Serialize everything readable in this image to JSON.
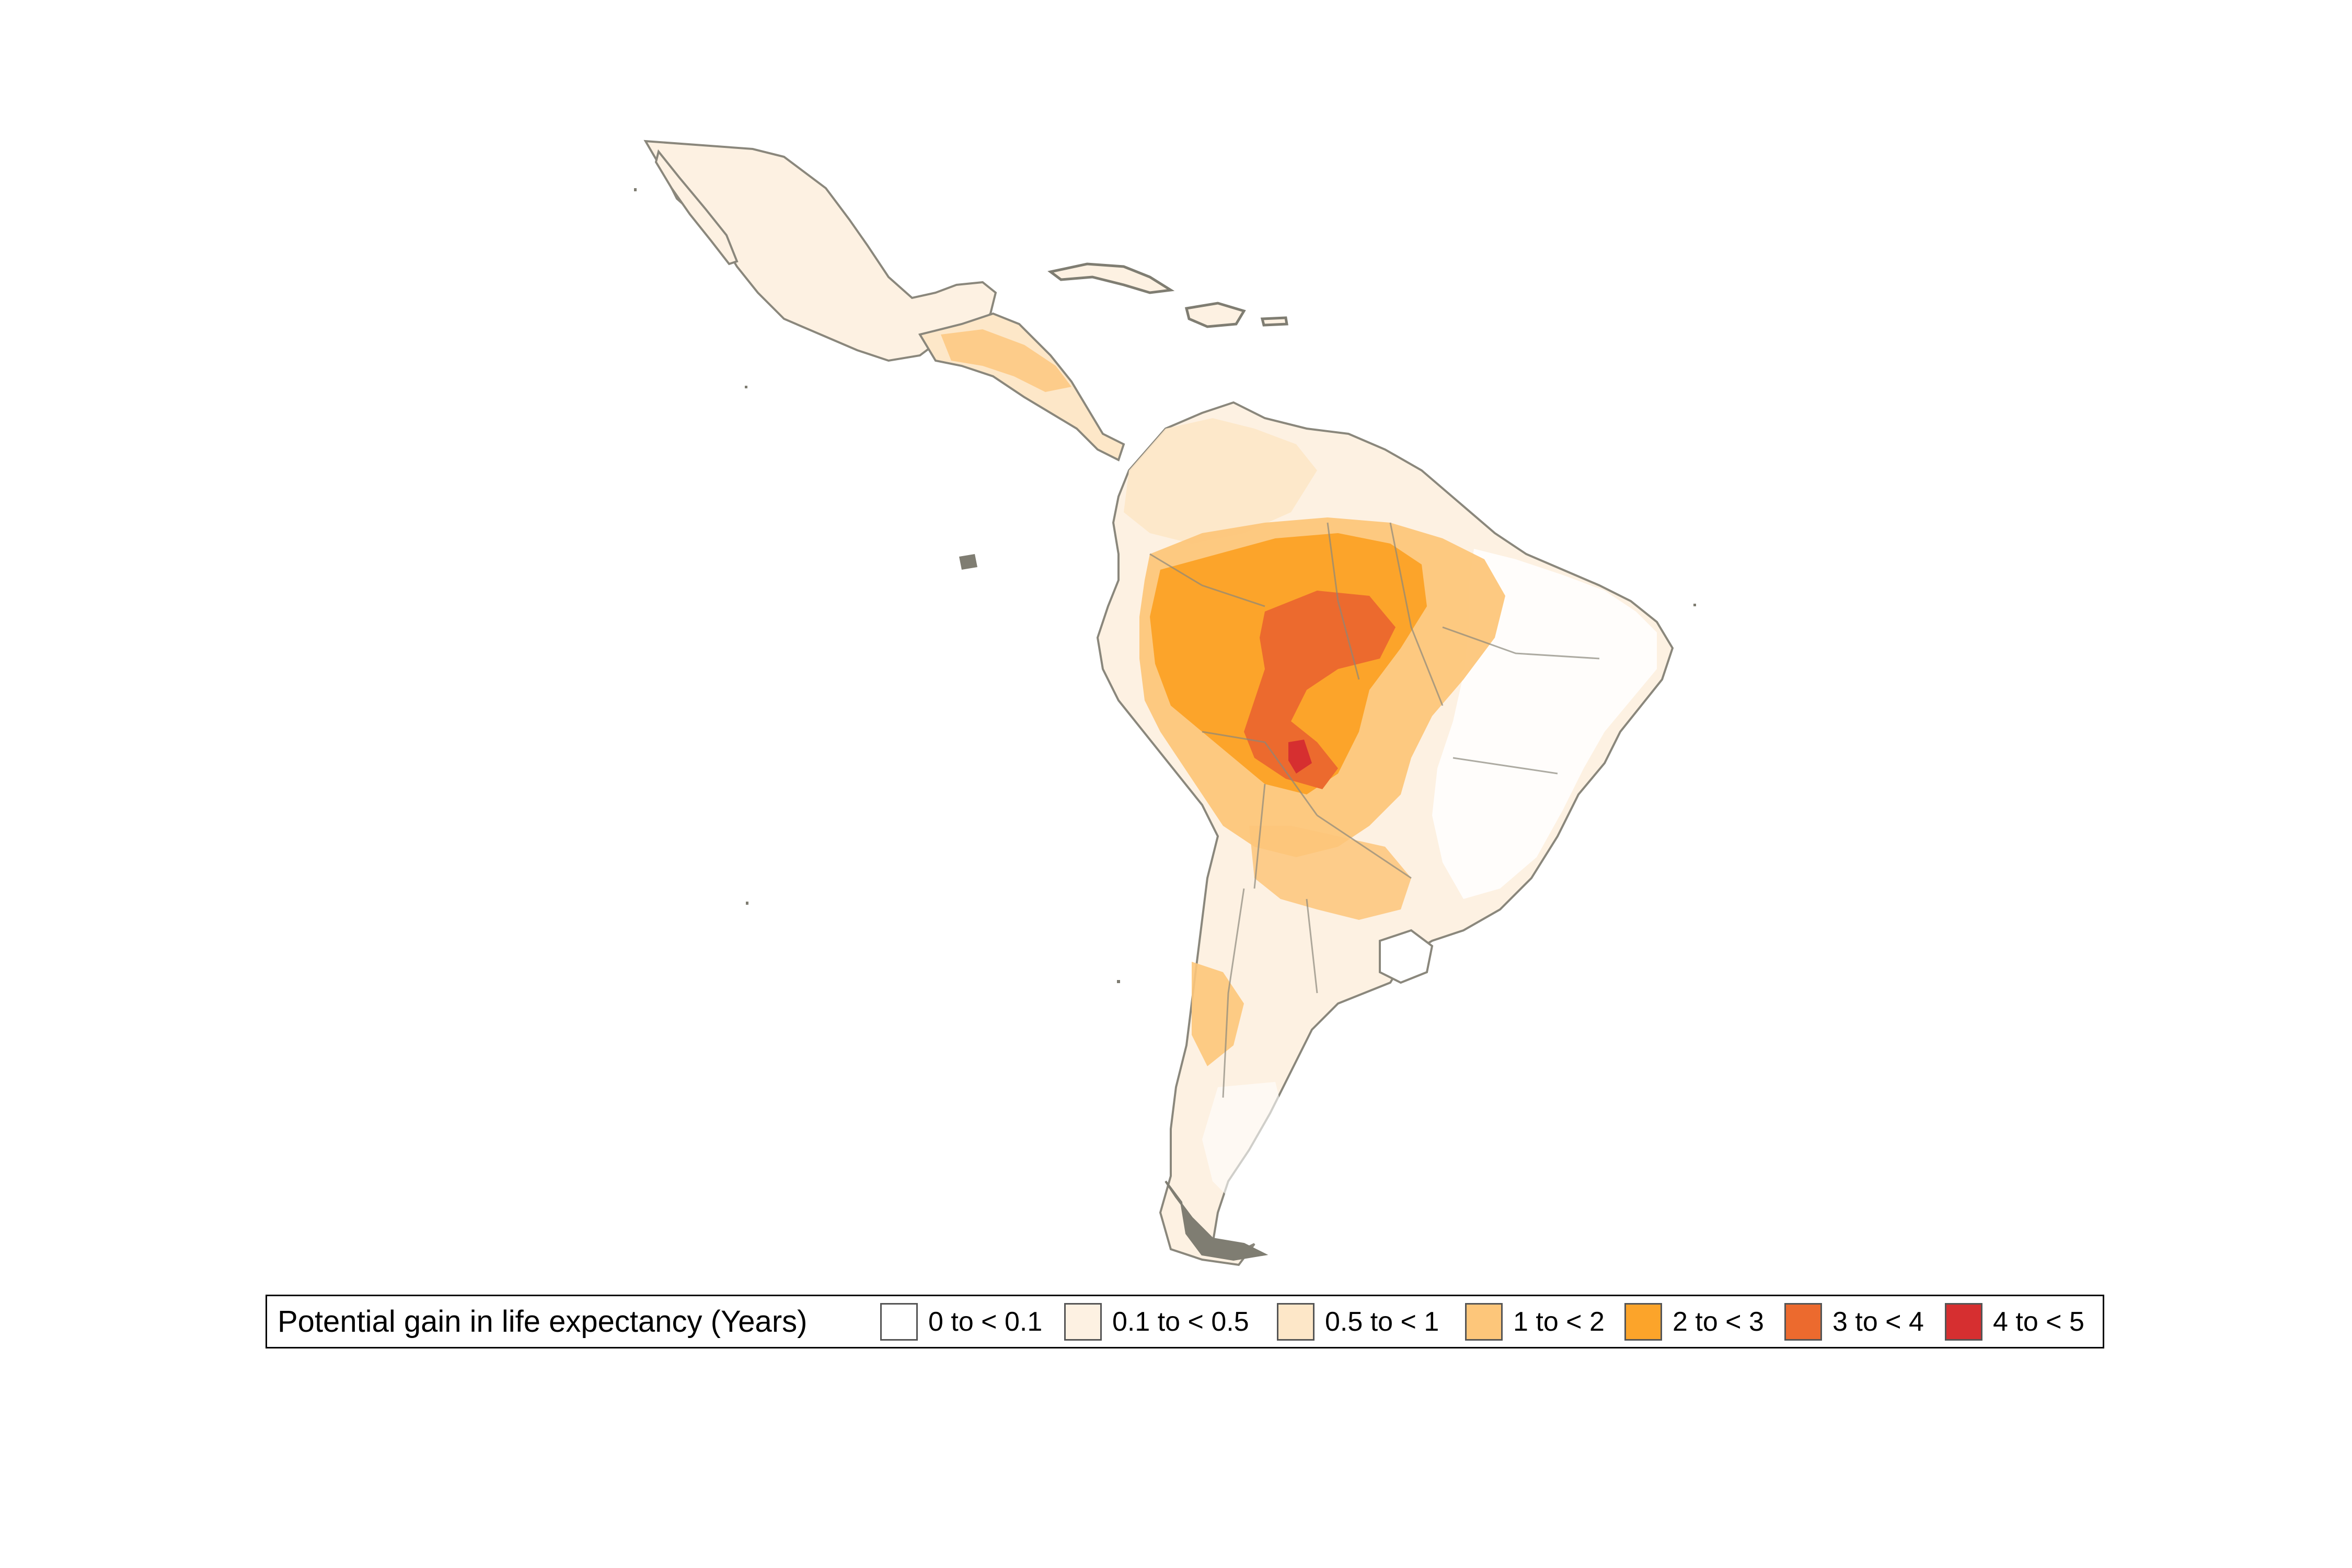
{
  "legend": {
    "title": "Potential gain in life expectancy (Years)",
    "items": [
      {
        "label": "0 to < 0.1",
        "color": "#ffffff"
      },
      {
        "label": "0.1 to < 0.5",
        "color": "#fdf1e2"
      },
      {
        "label": "0.5 to < 1",
        "color": "#fde7c8"
      },
      {
        "label": "1 to < 2",
        "color": "#fdc67a"
      },
      {
        "label": "2 to < 3",
        "color": "#fca42a"
      },
      {
        "label": "3 to < 4",
        "color": "#ec6a2e"
      },
      {
        "label": "4 to < 5",
        "color": "#d62f30"
      }
    ]
  },
  "colors": {
    "border": "#8a877c",
    "islands": "#7f7d72"
  }
}
